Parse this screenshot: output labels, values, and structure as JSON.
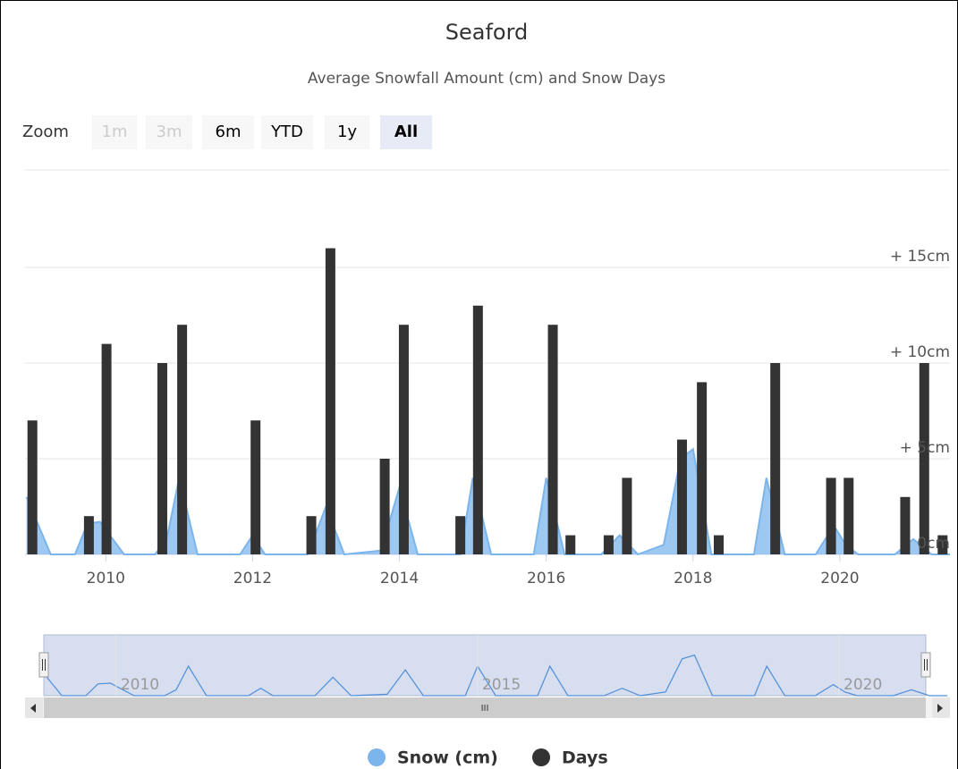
{
  "chart_data": {
    "type": "stock",
    "title": "Seaford",
    "subtitle": "Average Snowfall Amount (cm) and Snow Days",
    "zoom": {
      "label": "Zoom",
      "buttons": [
        "1m",
        "3m",
        "6m",
        "YTD",
        "1y",
        "All"
      ]
    },
    "xlim": [
      2008.9,
      2021.5
    ],
    "xticks": [
      2010,
      2012,
      2014,
      2016,
      2018,
      2020
    ],
    "ylim": [
      0,
      20
    ],
    "yticks": [
      {
        "value": 0,
        "label": "0cm"
      },
      {
        "value": 5,
        "label": "+ 5cm"
      },
      {
        "value": 10,
        "label": "+ 10cm"
      },
      {
        "value": 15,
        "label": "+ 15cm"
      }
    ],
    "grid": true,
    "series": [
      {
        "name": "Snow (cm)",
        "type": "area",
        "color": "#7cb5ec",
        "x": [
          2008.92,
          2009.25,
          2009.58,
          2009.75,
          2009.92,
          2010.25,
          2010.67,
          2010.83,
          2011.0,
          2011.25,
          2011.83,
          2012.0,
          2012.17,
          2012.75,
          2013.0,
          2013.25,
          2013.75,
          2014.0,
          2014.25,
          2014.83,
          2015.0,
          2015.25,
          2015.83,
          2016.0,
          2016.25,
          2016.75,
          2017.0,
          2017.25,
          2017.6,
          2017.83,
          2018.0,
          2018.25,
          2018.83,
          2019.0,
          2019.25,
          2019.67,
          2019.92,
          2020.08,
          2020.25,
          2020.75,
          2021.0,
          2021.25,
          2021.5
        ],
        "values": [
          3.0,
          0,
          0,
          1.6,
          1.7,
          0,
          0,
          0.8,
          4.0,
          0,
          0,
          1.0,
          0,
          0,
          2.5,
          0,
          0.2,
          3.5,
          0,
          0,
          4.0,
          0,
          0,
          4.0,
          0,
          0,
          1.0,
          0,
          0.5,
          5.0,
          5.5,
          0,
          0,
          4.0,
          0,
          0,
          1.5,
          0.5,
          0,
          0,
          0.8,
          0,
          0
        ]
      },
      {
        "name": "Days",
        "type": "column",
        "color": "#333333",
        "x": [
          2009.0,
          2009.77,
          2010.01,
          2010.77,
          2011.04,
          2012.04,
          2012.8,
          2013.06,
          2013.8,
          2014.06,
          2014.83,
          2015.07,
          2016.09,
          2016.33,
          2016.85,
          2017.1,
          2017.85,
          2018.12,
          2018.35,
          2019.12,
          2019.88,
          2020.12,
          2020.89,
          2021.15,
          2021.4
        ],
        "values": [
          7,
          2,
          11,
          10,
          12,
          7,
          2,
          16,
          5,
          12,
          2,
          13,
          12,
          1,
          1,
          4,
          6,
          9,
          1,
          10,
          4,
          4,
          3,
          10,
          1
        ]
      }
    ],
    "navigator": {
      "xlim": [
        2009.0,
        2021.2
      ],
      "xticks": [
        2010,
        2015,
        2020
      ]
    }
  }
}
